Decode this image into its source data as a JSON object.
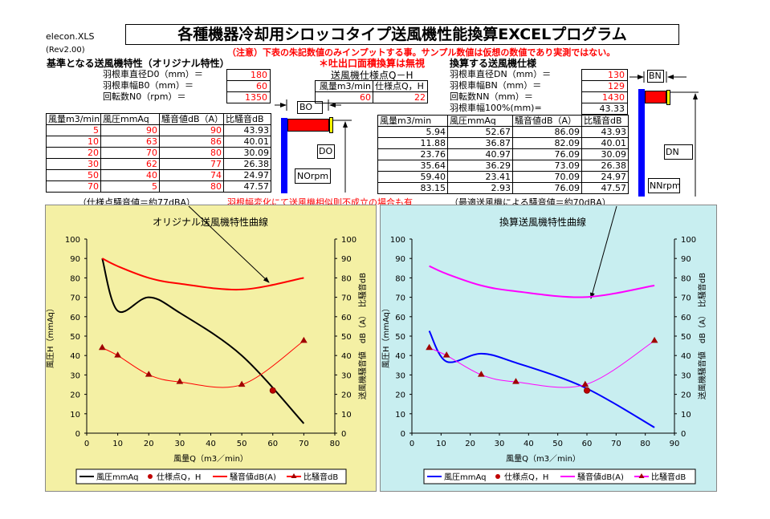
{
  "file_label": "elecon.XLS",
  "rev": "(Rev2.00)",
  "title": "各種機器冷却用シロッコタイプ送風機性能換算EXCELプログラム",
  "note": "（注意）下表の朱記数値のみインプットする事。サンプル数値は仮想の数値であり実測ではない。",
  "original": {
    "heading": "基準となる送風機特性（オリジナル特性）",
    "params": [
      {
        "label": "羽根車直径D0（mm）＝",
        "value": "180"
      },
      {
        "label": "羽根車幅B0（mm）＝",
        "value": "60"
      },
      {
        "label": "回転数N0（rpm）＝",
        "value": "1350"
      }
    ],
    "columns": [
      "風量m3/min",
      "風圧mmAq",
      "騒音値dB（A）",
      "比騒音dB"
    ],
    "rows": [
      [
        "5",
        "90",
        "90",
        "43.93"
      ],
      [
        "10",
        "63",
        "86",
        "40.01"
      ],
      [
        "20",
        "70",
        "80",
        "30.09"
      ],
      [
        "30",
        "62",
        "77",
        "26.38"
      ],
      [
        "50",
        "40",
        "74",
        "24.97"
      ],
      [
        "70",
        "5",
        "80",
        "47.57"
      ]
    ],
    "footnote": "（仕様点騒音値＝約77dBA）",
    "diagram": {
      "width": "BO",
      "diameter": "DO",
      "speed": "NOrpm"
    }
  },
  "area_note": "＊吐出口面積換算は無視",
  "spec": {
    "heading": "送風機仕様点Q－H",
    "col1": "風量m3/min",
    "col2": "仕様点Q，H",
    "q": "60",
    "h": "22"
  },
  "warning": "羽根幅変化にて送風機相似則不成立の場合も有",
  "converted": {
    "heading": "換算する送風機仕様",
    "params": [
      {
        "label": "羽根車直径DN（mm）＝",
        "value": "130"
      },
      {
        "label": "羽根車幅BN（mm）＝",
        "value": "129"
      },
      {
        "label": "回転数NN（mm）＝",
        "value": "1430"
      },
      {
        "label": "羽根車幅100%(mm)=",
        "value": "43.33"
      }
    ],
    "columns": [
      "風量m3/min",
      "風圧mmAq",
      "騒音値dB（A）",
      "比騒音dB"
    ],
    "rows": [
      [
        "5.94",
        "52.67",
        "86.09",
        "43.93"
      ],
      [
        "11.88",
        "36.87",
        "82.09",
        "40.01"
      ],
      [
        "23.76",
        "40.97",
        "76.09",
        "30.09"
      ],
      [
        "35.64",
        "36.29",
        "73.09",
        "26.38"
      ],
      [
        "59.40",
        "23.41",
        "70.09",
        "24.97"
      ],
      [
        "83.15",
        "2.93",
        "76.09",
        "47.57"
      ]
    ],
    "footnote": "（最適送風機による騒音値＝約70dBA）",
    "diagram": {
      "width": "BN",
      "diameter": "DN",
      "speed": "NNrpm"
    }
  },
  "chart_data": [
    {
      "type": "line",
      "title": "オリジナル送風機特性曲線",
      "xlabel": "風量Q（m3／min）",
      "ylabel": "風圧H（mmAq）",
      "y2label": "送風機騒音値　dB（A）　比騒音dB",
      "xlim": [
        0,
        80
      ],
      "ylim": [
        0,
        100
      ],
      "y2lim": [
        0,
        100
      ],
      "background": "#f4f0a4",
      "x": [
        5,
        10,
        20,
        30,
        50,
        70
      ],
      "series": [
        {
          "name": "風圧mmAq",
          "values": [
            90,
            63,
            70,
            62,
            40,
            5
          ],
          "color": "#000000"
        },
        {
          "name": "仕様点Q，H",
          "points": [
            [
              60,
              22
            ]
          ],
          "color": "#c00000"
        },
        {
          "name": "騒音値dB(A)",
          "values": [
            90,
            86,
            80,
            77,
            74,
            80
          ],
          "color": "#ff0000"
        },
        {
          "name": "比騒音dB",
          "values": [
            43.93,
            40.01,
            30.09,
            26.38,
            24.97,
            47.57
          ],
          "color": "#ff0000"
        }
      ],
      "legend": "bottom"
    },
    {
      "type": "line",
      "title": "換算送風機特性曲線",
      "xlabel": "風量Q（m3／min）",
      "ylabel": "風圧H（mmAq）",
      "y2label": "送風機騒音値　dB（A）　比騒音dB",
      "xlim": [
        0,
        90
      ],
      "ylim": [
        0,
        100
      ],
      "y2lim": [
        0,
        100
      ],
      "background": "#c8eef0",
      "x": [
        5.94,
        11.88,
        23.76,
        35.64,
        59.4,
        83.15
      ],
      "series": [
        {
          "name": "風圧mmAq",
          "values": [
            52.67,
            36.87,
            40.97,
            36.29,
            23.41,
            2.93
          ],
          "color": "#0000ff"
        },
        {
          "name": "仕様点Q，H",
          "points": [
            [
              60,
              22
            ]
          ],
          "color": "#c00000"
        },
        {
          "name": "騒音値dB(A)",
          "values": [
            86.09,
            82.09,
            76.09,
            73.09,
            70.09,
            76.09
          ],
          "color": "#ff00ff"
        },
        {
          "name": "比騒音dB",
          "values": [
            43.93,
            40.01,
            30.09,
            26.38,
            24.97,
            47.57
          ],
          "color": "#ff00ff"
        }
      ],
      "legend": "bottom"
    }
  ]
}
